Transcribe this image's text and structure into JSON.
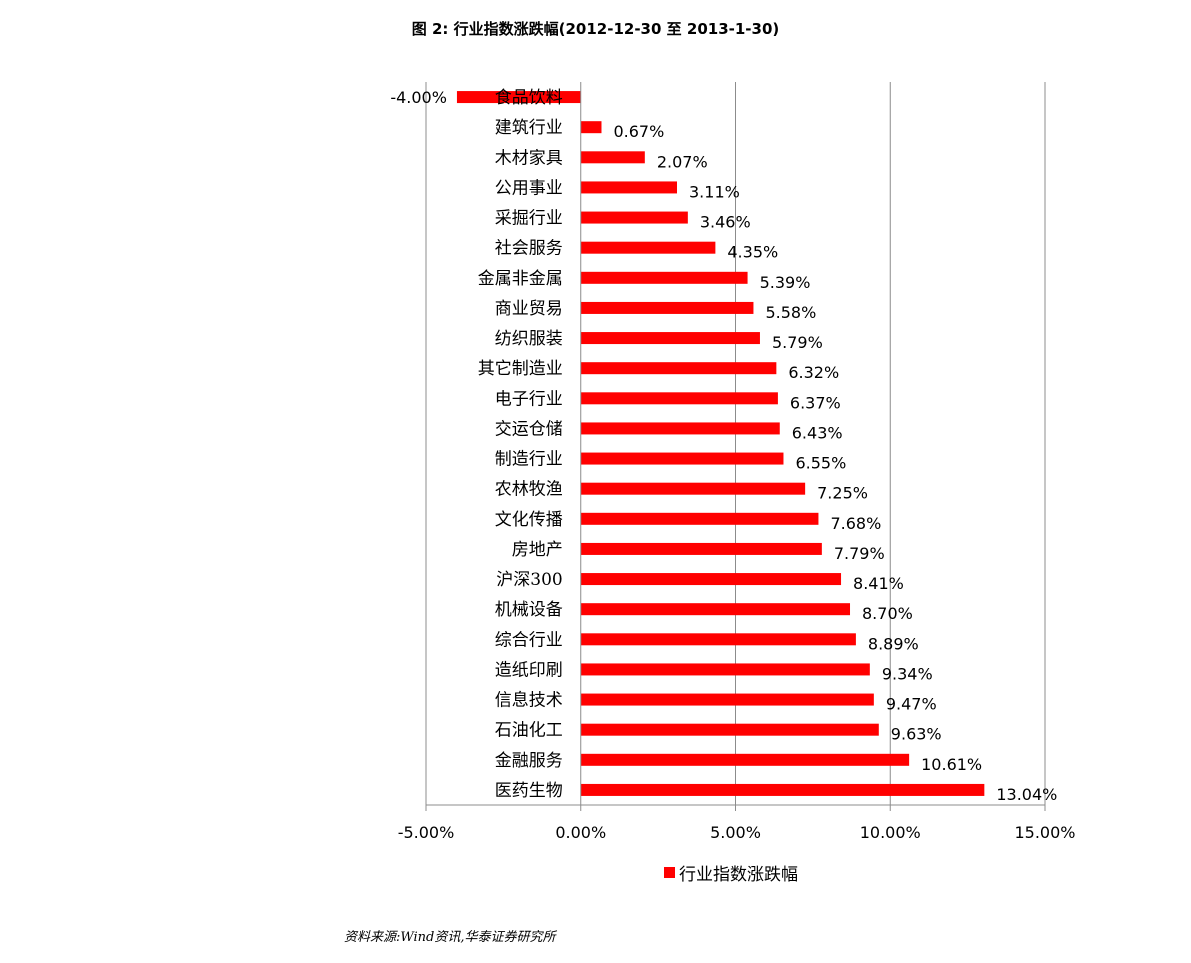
{
  "chart_data": {
    "type": "bar",
    "orientation": "horizontal",
    "title": "图 2: 行业指数涨跌幅(2012-12-30 至 2013-1-30)",
    "categories": [
      "食品饮料",
      "建筑行业",
      "木材家具",
      "公用事业",
      "采掘行业",
      "社会服务",
      "金属非金属",
      "商业贸易",
      "纺织服装",
      "其它制造业",
      "电子行业",
      "交运仓储",
      "制造行业",
      "农林牧渔",
      "文化传播",
      "房地产",
      "沪深300",
      "机械设备",
      "综合行业",
      "造纸印刷",
      "信息技术",
      "石油化工",
      "金融服务",
      "医药生物"
    ],
    "series": [
      {
        "name": "行业指数涨跌幅",
        "values": [
          -4.0,
          0.67,
          2.07,
          3.11,
          3.46,
          4.35,
          5.39,
          5.58,
          5.79,
          6.32,
          6.37,
          6.43,
          6.55,
          7.25,
          7.68,
          7.79,
          8.41,
          8.7,
          8.89,
          9.34,
          9.47,
          9.63,
          10.61,
          13.04
        ],
        "labels": [
          "-4.00%",
          "0.67%",
          "2.07%",
          "3.11%",
          "3.46%",
          "4.35%",
          "5.39%",
          "5.58%",
          "5.79%",
          "6.32%",
          "6.37%",
          "6.43%",
          "6.55%",
          "7.25%",
          "7.68%",
          "7.79%",
          "8.41%",
          "8.70%",
          "8.89%",
          "9.34%",
          "9.47%",
          "9.63%",
          "10.61%",
          "13.04%"
        ],
        "color": "#ff0000"
      }
    ],
    "xlim": [
      -5,
      15
    ],
    "xticks": [
      -5,
      0,
      5,
      10,
      15
    ],
    "xtick_labels": [
      "-5.00%",
      "0.00%",
      "5.00%",
      "10.00%",
      "15.00%"
    ],
    "grid": "vertical",
    "legend": "bottom",
    "source": "资料来源:Wind资讯,华泰证券研究所"
  }
}
